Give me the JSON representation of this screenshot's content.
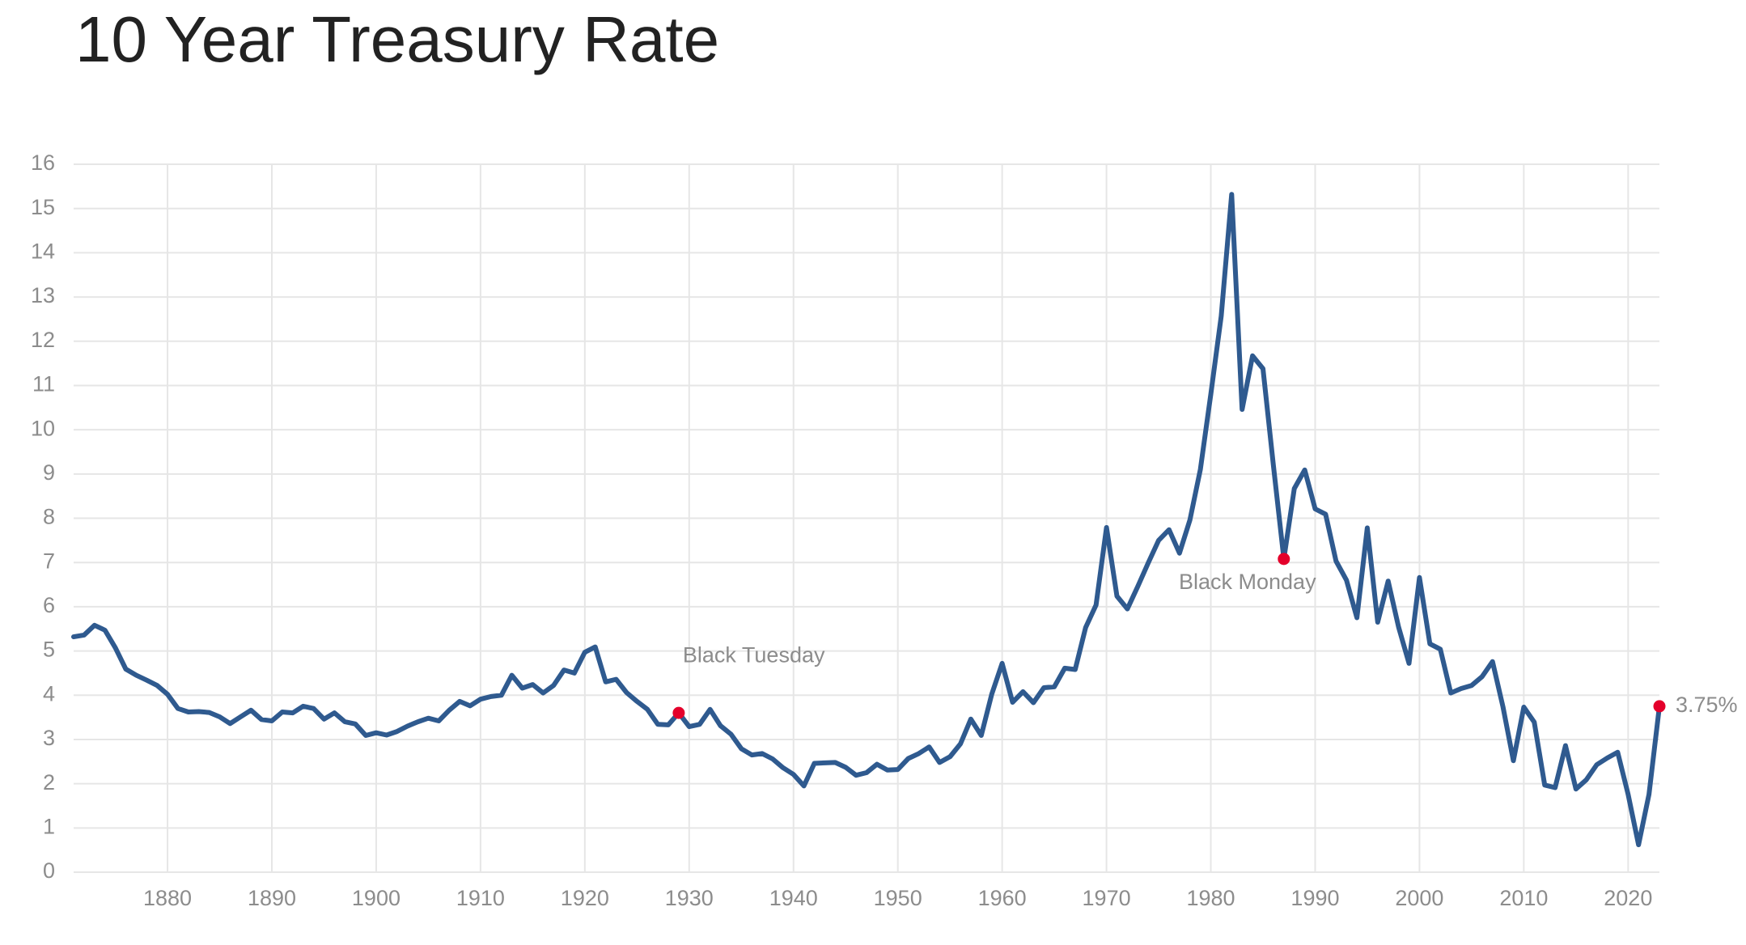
{
  "chart_data": {
    "type": "line",
    "title": "10 Year Treasury Rate",
    "x": [
      1871,
      1872,
      1873,
      1874,
      1875,
      1876,
      1877,
      1878,
      1879,
      1880,
      1881,
      1882,
      1883,
      1884,
      1885,
      1886,
      1887,
      1888,
      1889,
      1890,
      1891,
      1892,
      1893,
      1894,
      1895,
      1896,
      1897,
      1898,
      1899,
      1900,
      1901,
      1902,
      1903,
      1904,
      1905,
      1906,
      1907,
      1908,
      1909,
      1910,
      1911,
      1912,
      1913,
      1914,
      1915,
      1916,
      1917,
      1918,
      1919,
      1920,
      1921,
      1922,
      1923,
      1924,
      1925,
      1926,
      1927,
      1928,
      1929,
      1930,
      1931,
      1932,
      1933,
      1934,
      1935,
      1936,
      1937,
      1938,
      1939,
      1940,
      1941,
      1942,
      1943,
      1944,
      1945,
      1946,
      1947,
      1948,
      1949,
      1950,
      1951,
      1952,
      1953,
      1954,
      1955,
      1956,
      1957,
      1958,
      1959,
      1960,
      1961,
      1962,
      1963,
      1964,
      1965,
      1966,
      1967,
      1968,
      1969,
      1970,
      1971,
      1972,
      1973,
      1974,
      1975,
      1976,
      1977,
      1978,
      1979,
      1980,
      1981,
      1982,
      1983,
      1984,
      1985,
      1986,
      1987,
      1988,
      1989,
      1990,
      1991,
      1992,
      1993,
      1994,
      1995,
      1996,
      1997,
      1998,
      1999,
      2000,
      2001,
      2002,
      2003,
      2004,
      2005,
      2006,
      2007,
      2008,
      2009,
      2010,
      2011,
      2012,
      2013,
      2014,
      2015,
      2016,
      2017,
      2018,
      2019,
      2020,
      2021,
      2022,
      2023
    ],
    "series": [
      {
        "color": "#2f5a8f",
        "values": [
          5.32,
          5.36,
          5.58,
          5.47,
          5.07,
          4.59,
          4.45,
          4.34,
          4.22,
          4.02,
          3.7,
          3.62,
          3.63,
          3.61,
          3.51,
          3.36,
          3.51,
          3.66,
          3.45,
          3.42,
          3.62,
          3.6,
          3.75,
          3.7,
          3.46,
          3.6,
          3.4,
          3.35,
          3.09,
          3.15,
          3.1,
          3.18,
          3.3,
          3.4,
          3.48,
          3.42,
          3.66,
          3.86,
          3.76,
          3.91,
          3.97,
          4.0,
          4.45,
          4.16,
          4.24,
          4.05,
          4.22,
          4.57,
          4.5,
          4.97,
          5.09,
          4.3,
          4.36,
          4.06,
          3.86,
          3.68,
          3.34,
          3.33,
          3.6,
          3.29,
          3.34,
          3.68,
          3.31,
          3.12,
          2.79,
          2.65,
          2.68,
          2.56,
          2.36,
          2.21,
          1.95,
          2.46,
          2.47,
          2.48,
          2.37,
          2.19,
          2.25,
          2.44,
          2.31,
          2.32,
          2.57,
          2.68,
          2.83,
          2.48,
          2.61,
          2.9,
          3.46,
          3.09,
          4.02,
          4.72,
          3.84,
          4.08,
          3.83,
          4.17,
          4.19,
          4.61,
          4.58,
          5.53,
          6.04,
          7.79,
          6.24,
          5.95,
          6.46,
          6.99,
          7.5,
          7.74,
          7.21,
          7.96,
          9.1,
          10.8,
          12.57,
          15.32,
          10.46,
          11.67,
          11.38,
          9.19,
          7.08,
          8.67,
          9.09,
          8.21,
          8.09,
          7.03,
          6.6,
          5.75,
          7.78,
          5.65,
          6.58,
          5.54,
          4.72,
          6.66,
          5.16,
          5.04,
          4.05,
          4.15,
          4.22,
          4.42,
          4.76,
          3.74,
          2.52,
          3.73,
          3.39,
          1.97,
          1.91,
          2.86,
          1.88,
          2.09,
          2.43,
          2.58,
          2.71,
          1.76,
          0.62,
          1.76,
          3.75
        ]
      }
    ],
    "annotations": [
      {
        "text": "Black Tuesday",
        "x": 1929,
        "y": 3.6,
        "color": "#e4002b"
      },
      {
        "text": "Black Monday",
        "x": 1987,
        "y": 7.08,
        "color": "#e4002b"
      },
      {
        "text": "3.75%",
        "x": 2023,
        "y": 3.75,
        "color": "#e4002b"
      }
    ],
    "xlim": [
      1871,
      2023
    ],
    "xticks": [
      1880,
      1890,
      1900,
      1910,
      1920,
      1930,
      1940,
      1950,
      1960,
      1970,
      1980,
      1990,
      2000,
      2010,
      2020
    ],
    "ylim": [
      0,
      16
    ],
    "yticks": [
      0,
      1,
      2,
      3,
      4,
      5,
      6,
      7,
      8,
      9,
      10,
      11,
      12,
      13,
      14,
      15,
      16
    ],
    "grid": true
  }
}
